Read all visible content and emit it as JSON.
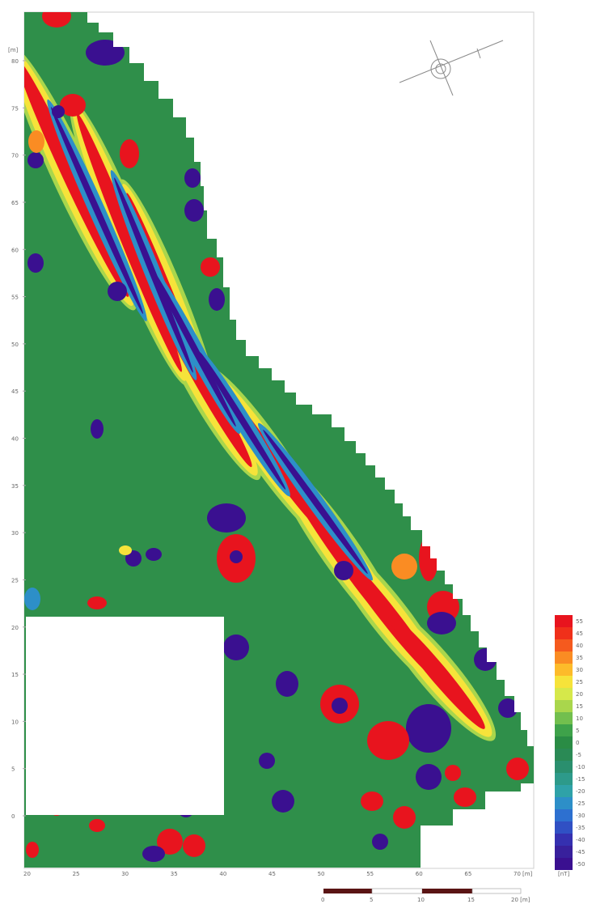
{
  "map": {
    "y_unit": "[m]",
    "x_unit": "[m]",
    "y_ticks": [
      "80",
      "75",
      "70",
      "65",
      "60",
      "55",
      "50",
      "45",
      "40",
      "35",
      "30",
      "25",
      "20",
      "15",
      "10",
      "5",
      "0"
    ],
    "x_ticks": [
      "20",
      "25",
      "30",
      "35",
      "40",
      "45",
      "50",
      "55",
      "60",
      "65",
      "70"
    ],
    "north_arrow": "north-arrow-icon"
  },
  "legend": {
    "unit": "[nT]",
    "values": [
      "55",
      "45",
      "40",
      "35",
      "30",
      "25",
      "20",
      "15",
      "10",
      "5",
      "0",
      "-5",
      "-10",
      "-15",
      "-20",
      "-25",
      "-30",
      "-35",
      "-40",
      "-45",
      "-50"
    ],
    "colors": [
      "#e8141e",
      "#f0301a",
      "#f55a1e",
      "#fa8c23",
      "#fdbb2a",
      "#f6e33a",
      "#d6e84a",
      "#a9d64c",
      "#72bf4e",
      "#3ea24a",
      "#2a8c45",
      "#2a8a55",
      "#2a8f6e",
      "#2d9a8a",
      "#2fa2a8",
      "#2d8fc8",
      "#2d70d0",
      "#3050c4",
      "#3530b0",
      "#38209c",
      "#3a1090"
    ]
  },
  "scale_bar": {
    "labels": [
      "0",
      "5",
      "10",
      "15",
      "20 [m]"
    ]
  }
}
